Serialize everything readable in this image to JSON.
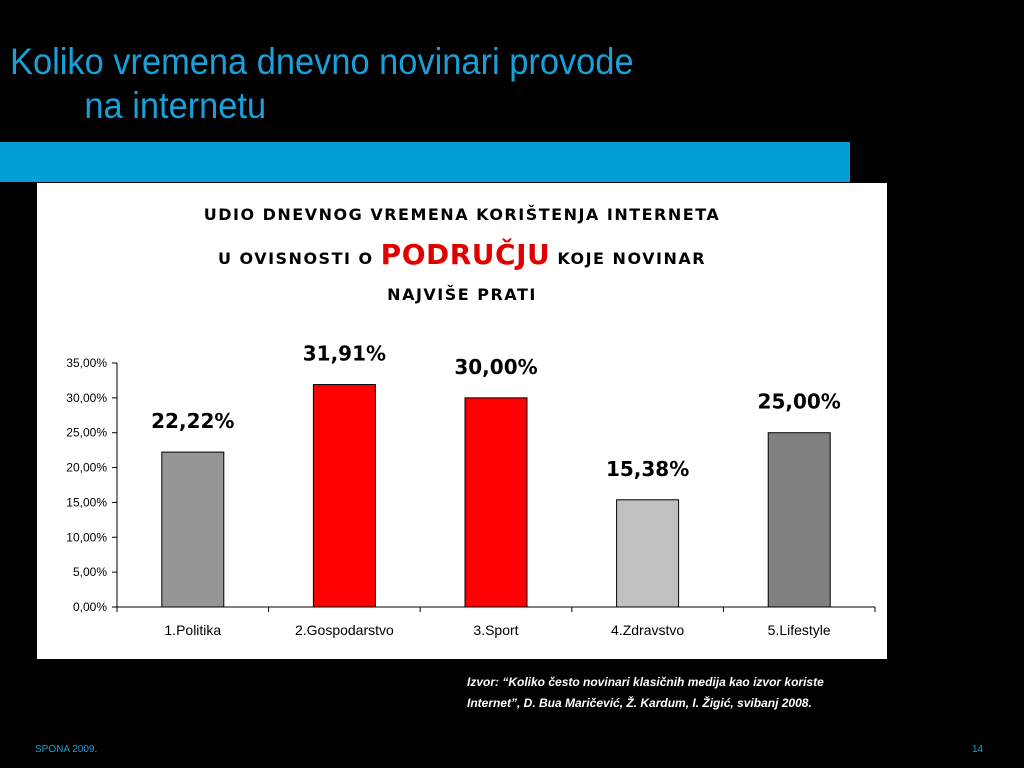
{
  "slide": {
    "title_line1": "Koliko vremena dnevno novinari provode",
    "title_line2": "na internetu",
    "source_line1": "Izvor: “Koliko često novinari klasičnih medija kao izvor koriste",
    "source_line2": "Internet”, D. Bua Maričević, Ž. Kardum, I. Žigić, svibanj 2008.",
    "footer": "SPONA 2009.",
    "page_number": "14"
  },
  "chart_heading": {
    "line1": "UDIO DNEVNOG VREMENA KORIŠTENJA INTERNETA",
    "line2_pre": "U OVISNOSTI O ",
    "line2_highlight": "PODRUČJU",
    "line2_post": " KOJE NOVINAR",
    "line3": "NAJVIŠE PRATI"
  },
  "chart_data": {
    "type": "bar",
    "categories": [
      "1.Politika",
      "2.Gospodarstvo",
      "3.Sport",
      "4.Zdravstvo",
      "5.Lifestyle"
    ],
    "values": [
      22.22,
      31.91,
      30.0,
      15.38,
      25.0
    ],
    "data_labels": [
      "22,22%",
      "31,91%",
      "30,00%",
      "15,38%",
      "25,00%"
    ],
    "bar_colors": [
      "#969696",
      "#ff0000",
      "#ff0000",
      "#c0c0c0",
      "#808080"
    ],
    "ylim": [
      0,
      35
    ],
    "yticks": [
      0,
      5,
      10,
      15,
      20,
      25,
      30,
      35
    ],
    "ytick_labels": [
      "0,00%",
      "5,00%",
      "10,00%",
      "15,00%",
      "20,00%",
      "25,00%",
      "30,00%",
      "35,00%"
    ],
    "xlabel": "",
    "ylabel": "",
    "grid": false,
    "legend": false
  },
  "colors": {
    "title": "#1a9fd9",
    "band": "#049fd7",
    "highlight": "#e00000"
  }
}
